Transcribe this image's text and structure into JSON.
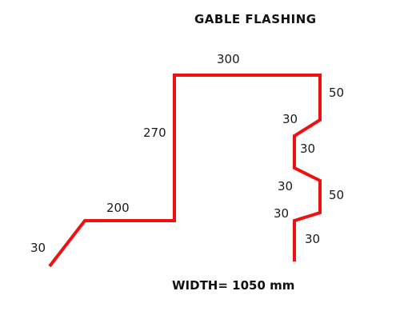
{
  "title": "GABLE FLASHING",
  "width_label": "WIDTH= 1050 mm",
  "profile_color": "#ee1111",
  "dimensions": {
    "d_30_bottom_left": "30",
    "d_200": "200",
    "d_270": "270",
    "d_300": "300",
    "d_50_top": "50",
    "d_30_a": "30",
    "d_30_b": "30",
    "d_30_c": "30",
    "d_50_mid": "50",
    "d_30_d": "30",
    "d_30_e": "30"
  }
}
